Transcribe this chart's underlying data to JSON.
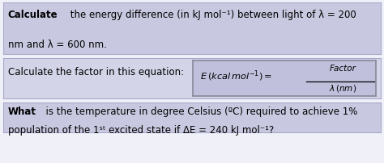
{
  "bg_color": "#e8e8f0",
  "box1_color": "#c8c8e0",
  "box2_color": "#d4d4e8",
  "box3_color": "#c8c8e0",
  "eq_box_color": "#c0c0dc",
  "eq_box_edge": "#888899",
  "box_edge": "#aaaacc",
  "white_bg": "#f0f0f8",
  "text1_bold": "Calculate",
  "text1_normal": " the energy difference (in kJ mol⁻¹) between light of λ = 200",
  "text1_line2": "nm and λ = 600 nm.",
  "text2": "Calculate the factor in this equation:",
  "text3_bold": "What",
  "text3_normal": "  is the temperature in degree Celsius (ºC) required to achieve 1%",
  "text3_line2": "population of the 1ˢᵗ excited state if ΔE = 240 kJ mol⁻¹?",
  "font_size": 8.5,
  "dpi": 100,
  "fig_w": 4.74,
  "fig_h": 2.03
}
